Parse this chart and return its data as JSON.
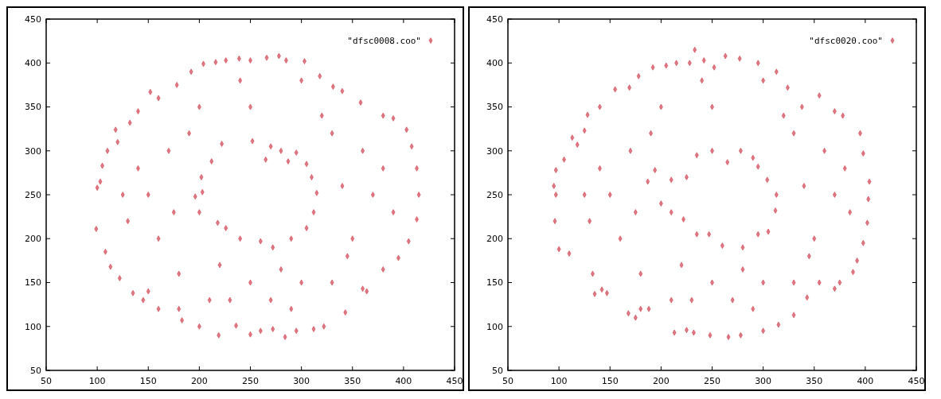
{
  "chart_data": [
    {
      "type": "scatter",
      "xlim": [
        50,
        450
      ],
      "ylim": [
        50,
        450
      ],
      "xticks": [
        50,
        100,
        150,
        200,
        250,
        300,
        350,
        400,
        450
      ],
      "yticks": [
        50,
        100,
        150,
        200,
        250,
        300,
        350,
        400,
        450
      ],
      "legend": "top right",
      "marker": "diamond",
      "grid": false,
      "series": [
        {
          "name": "\"dfsc0008.coo\"",
          "color": "#d0404f",
          "x": [
            100,
            99,
            103,
            108,
            113,
            118,
            122,
            135,
            145,
            150,
            160,
            183,
            200,
            219,
            236,
            250,
            260,
            272,
            284,
            295,
            312,
            322,
            343,
            360,
            364,
            380,
            395,
            405,
            413,
            415,
            413,
            408,
            403,
            390,
            380,
            358,
            340,
            331,
            318,
            303,
            285,
            278,
            266,
            250,
            239,
            226,
            216,
            204,
            192,
            178,
            160,
            152,
            140,
            132,
            120,
            110,
            105,
            222,
            212,
            202,
            203,
            196,
            200,
            218,
            226,
            240,
            260,
            272,
            290,
            305,
            312,
            315,
            310,
            305,
            295,
            280,
            270,
            252,
            265,
            287,
            150,
            160,
            170,
            180,
            200,
            250,
            250,
            300,
            320,
            350,
            360,
            370,
            130,
            140,
            210,
            290,
            330,
            380,
            240,
            300,
            175,
            190,
            340,
            330,
            220,
            280,
            345,
            125,
            390,
            270,
            230,
            180
          ],
          "values": [
            258,
            211,
            265,
            185,
            168,
            324,
            155,
            138,
            130,
            140,
            120,
            107,
            100,
            90,
            101,
            91,
            95,
            97,
            88,
            95,
            97,
            100,
            116,
            143,
            140,
            165,
            178,
            197,
            222,
            250,
            280,
            305,
            324,
            337,
            340,
            355,
            368,
            373,
            385,
            402,
            403,
            408,
            406,
            403,
            405,
            403,
            401,
            399,
            390,
            375,
            360,
            367,
            345,
            332,
            310,
            300,
            283,
            308,
            288,
            270,
            253,
            248,
            230,
            218,
            212,
            200,
            197,
            190,
            200,
            212,
            230,
            252,
            270,
            285,
            298,
            300,
            305,
            311,
            290,
            288,
            250,
            200,
            300,
            160,
            350,
            150,
            350,
            150,
            340,
            200,
            300,
            250,
            220,
            280,
            130,
            120,
            150,
            280,
            380,
            380,
            230,
            320,
            260,
            320,
            170,
            165,
            180,
            250,
            230,
            130,
            130,
            120
          ]
        }
      ]
    },
    {
      "type": "scatter",
      "xlim": [
        50,
        450
      ],
      "ylim": [
        50,
        450
      ],
      "xticks": [
        50,
        100,
        150,
        200,
        250,
        300,
        350,
        400,
        450
      ],
      "yticks": [
        50,
        100,
        150,
        200,
        250,
        300,
        350,
        400,
        450
      ],
      "legend": "top right",
      "marker": "diamond",
      "grid": false,
      "series": [
        {
          "name": "\"dfsc0020.coo\"",
          "color": "#d0404f",
          "x": [
            95,
            97,
            97,
            96,
            100,
            105,
            110,
            113,
            128,
            133,
            135,
            142,
            147,
            168,
            175,
            188,
            213,
            225,
            232,
            248,
            266,
            278,
            300,
            315,
            330,
            343,
            355,
            370,
            375,
            388,
            392,
            398,
            402,
            403,
            404,
            398,
            395,
            378,
            370,
            355,
            338,
            324,
            313,
            295,
            277,
            263,
            252,
            242,
            233,
            228,
            215,
            205,
            192,
            178,
            169,
            155,
            140,
            125,
            118,
            187,
            200,
            210,
            222,
            235,
            247,
            260,
            280,
            295,
            305,
            312,
            313,
            304,
            295,
            290,
            278,
            265,
            250,
            235,
            225,
            210,
            194,
            150,
            160,
            170,
            180,
            200,
            250,
            250,
            300,
            320,
            350,
            360,
            370,
            130,
            140,
            210,
            290,
            330,
            380,
            240,
            300,
            175,
            190,
            340,
            330,
            220,
            280,
            345,
            125,
            385,
            270,
            230,
            180
          ],
          "values": [
            260,
            250,
            278,
            220,
            188,
            290,
            183,
            315,
            341,
            160,
            137,
            142,
            138,
            115,
            110,
            120,
            93,
            96,
            93,
            90,
            88,
            90,
            95,
            102,
            113,
            133,
            150,
            143,
            150,
            162,
            175,
            195,
            218,
            245,
            265,
            297,
            320,
            340,
            345,
            363,
            350,
            372,
            390,
            400,
            405,
            408,
            395,
            403,
            415,
            400,
            400,
            397,
            395,
            385,
            372,
            370,
            350,
            323,
            307,
            265,
            240,
            230,
            222,
            205,
            205,
            192,
            190,
            205,
            208,
            232,
            250,
            267,
            282,
            292,
            300,
            287,
            300,
            295,
            270,
            267,
            278,
            250,
            200,
            300,
            160,
            350,
            150,
            350,
            150,
            340,
            200,
            300,
            250,
            220,
            280,
            130,
            120,
            150,
            280,
            380,
            380,
            230,
            320,
            260,
            320,
            170,
            165,
            180,
            250,
            230,
            130,
            130,
            120
          ]
        }
      ]
    }
  ]
}
